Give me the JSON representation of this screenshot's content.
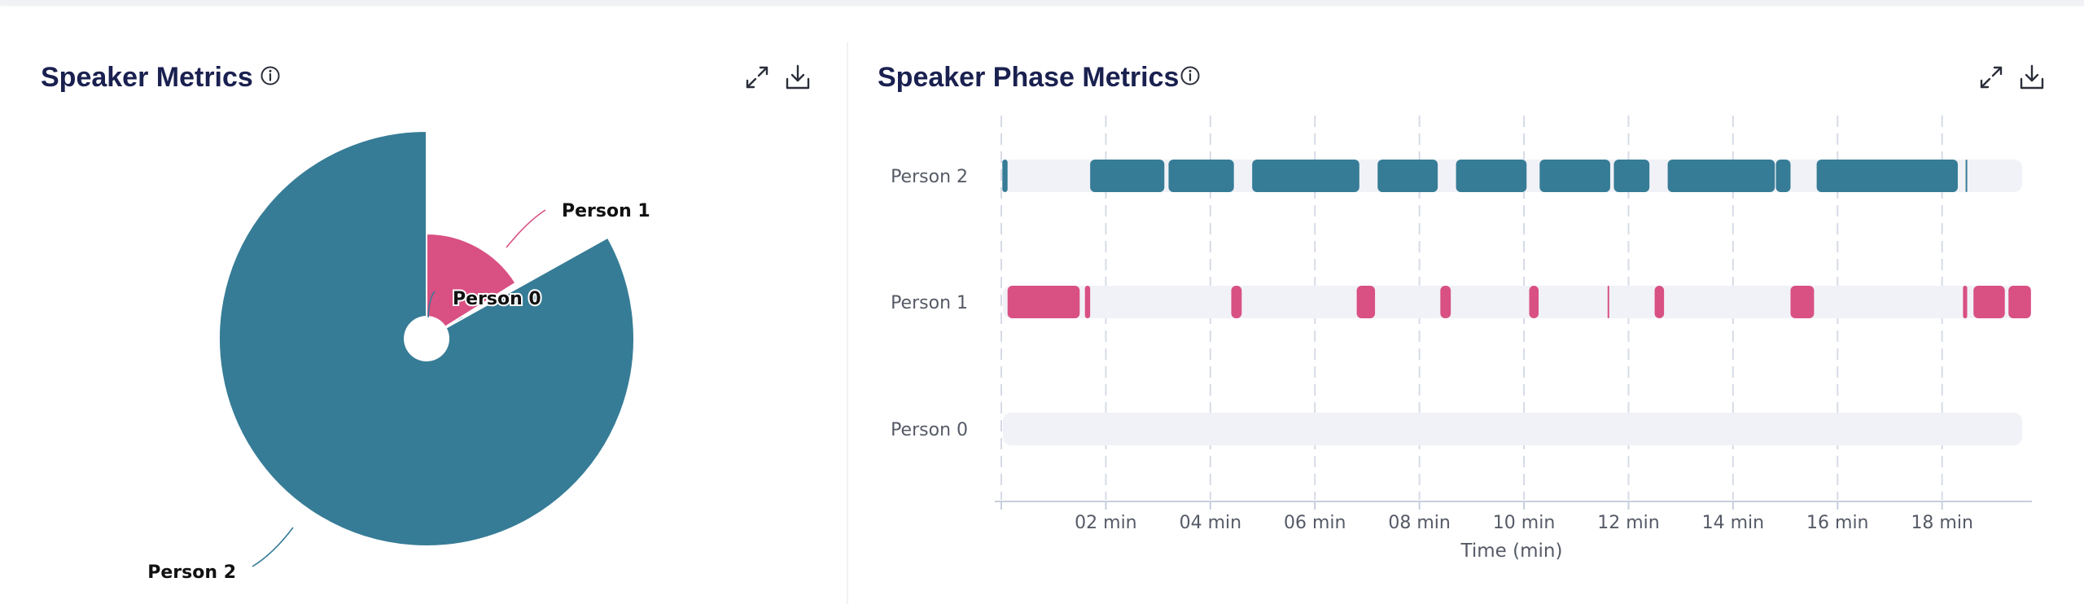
{
  "panels": {
    "speaker_metrics": {
      "title": "Speaker Metrics",
      "icons": [
        "info-icon",
        "expand-icon",
        "download-icon"
      ]
    },
    "speaker_phase": {
      "title": "Speaker Phase Metrics",
      "icons": [
        "info-icon",
        "expand-icon",
        "download-icon"
      ]
    }
  },
  "colors": {
    "person2": "#367c96",
    "person1": "#d95083",
    "track": "#f1f2f7",
    "title": "#1a2150"
  },
  "chart_data": [
    {
      "type": "pie",
      "variant": "nightingale-rose",
      "title": "Speaker Metrics",
      "slices": [
        {
          "label": "Person 2",
          "value": 83.1,
          "color": "#367c96"
        },
        {
          "label": "Person 1",
          "value": 16.1,
          "color": "#d95083"
        },
        {
          "label": "Person 0",
          "value": 0.8,
          "color": "#367c96"
        }
      ]
    },
    {
      "type": "timeline",
      "title": "Speaker Phase Metrics",
      "xlabel": "Time (min)",
      "xticks": [
        {
          "value": 2,
          "label": "02 min"
        },
        {
          "value": 4,
          "label": "04 min"
        },
        {
          "value": 6,
          "label": "06 min"
        },
        {
          "value": 8,
          "label": "08 min"
        },
        {
          "value": 10,
          "label": "10 min"
        },
        {
          "value": 12,
          "label": "12 min"
        },
        {
          "value": 14,
          "label": "14 min"
        },
        {
          "value": 16,
          "label": "16 min"
        },
        {
          "value": 18,
          "label": "18 min"
        }
      ],
      "xlim": [
        0,
        19.5
      ],
      "grid": true,
      "rows": [
        {
          "label": "Person 2",
          "color": "#367c96",
          "segments": [
            [
              0.02,
              0.12
            ],
            [
              1.7,
              3.12
            ],
            [
              3.2,
              4.45
            ],
            [
              4.8,
              6.85
            ],
            [
              7.2,
              8.35
            ],
            [
              8.7,
              10.05
            ],
            [
              10.3,
              11.65
            ],
            [
              11.72,
              12.4
            ],
            [
              12.75,
              14.8
            ],
            [
              14.82,
              15.1
            ],
            [
              15.6,
              18.3
            ],
            [
              18.45,
              18.48
            ]
          ]
        },
        {
          "label": "Person 1",
          "color": "#d95083",
          "segments": [
            [
              0.12,
              1.5
            ],
            [
              1.6,
              1.7
            ],
            [
              4.4,
              4.6
            ],
            [
              6.8,
              7.15
            ],
            [
              8.4,
              8.6
            ],
            [
              10.1,
              10.28
            ],
            [
              11.6,
              11.63
            ],
            [
              12.5,
              12.68
            ],
            [
              15.1,
              15.55
            ],
            [
              18.4,
              18.48
            ],
            [
              18.6,
              19.2
            ],
            [
              19.27,
              19.7
            ]
          ]
        },
        {
          "label": "Person 0",
          "color": "#367c96",
          "segments": []
        }
      ]
    }
  ]
}
